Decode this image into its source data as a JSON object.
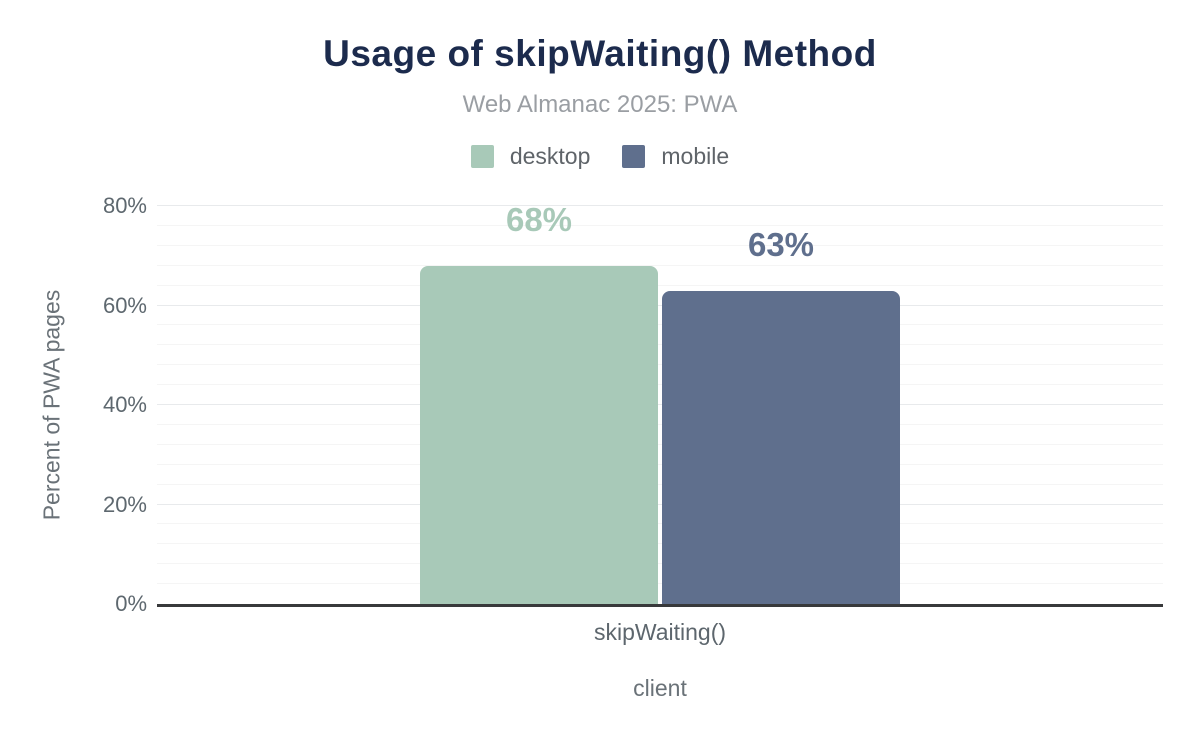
{
  "chart_data": {
    "type": "bar",
    "title": "Usage of skipWaiting() Method",
    "subtitle": "Web Almanac 2025: PWA",
    "categories": [
      "skipWaiting()"
    ],
    "series": [
      {
        "name": "desktop",
        "values": [
          68
        ],
        "value_labels": [
          "68%"
        ],
        "color": "#a8c9b8"
      },
      {
        "name": "mobile",
        "values": [
          63
        ],
        "value_labels": [
          "63%"
        ],
        "color": "#5f6f8d"
      }
    ],
    "xlabel": "client",
    "ylabel": "Percent of PWA pages",
    "ylim": [
      0,
      80
    ],
    "yticks": [
      "0%",
      "20%",
      "40%",
      "60%",
      "80%"
    ],
    "ytick_values": [
      0,
      20,
      40,
      60,
      80
    ],
    "grid": {
      "minor_step": 4,
      "major_step": 20,
      "minor_color": "#f5f5f5",
      "major_color": "#e8eaec"
    },
    "legend_position": "top"
  },
  "colors": {
    "title": "#1c2b4d",
    "subtitle": "#9a9ea3",
    "axis_line": "#38393b",
    "tick_text": "#5e686f",
    "axis_title_text": "#6a7278",
    "desktop": "#a8c9b8",
    "mobile": "#5f6f8d"
  }
}
